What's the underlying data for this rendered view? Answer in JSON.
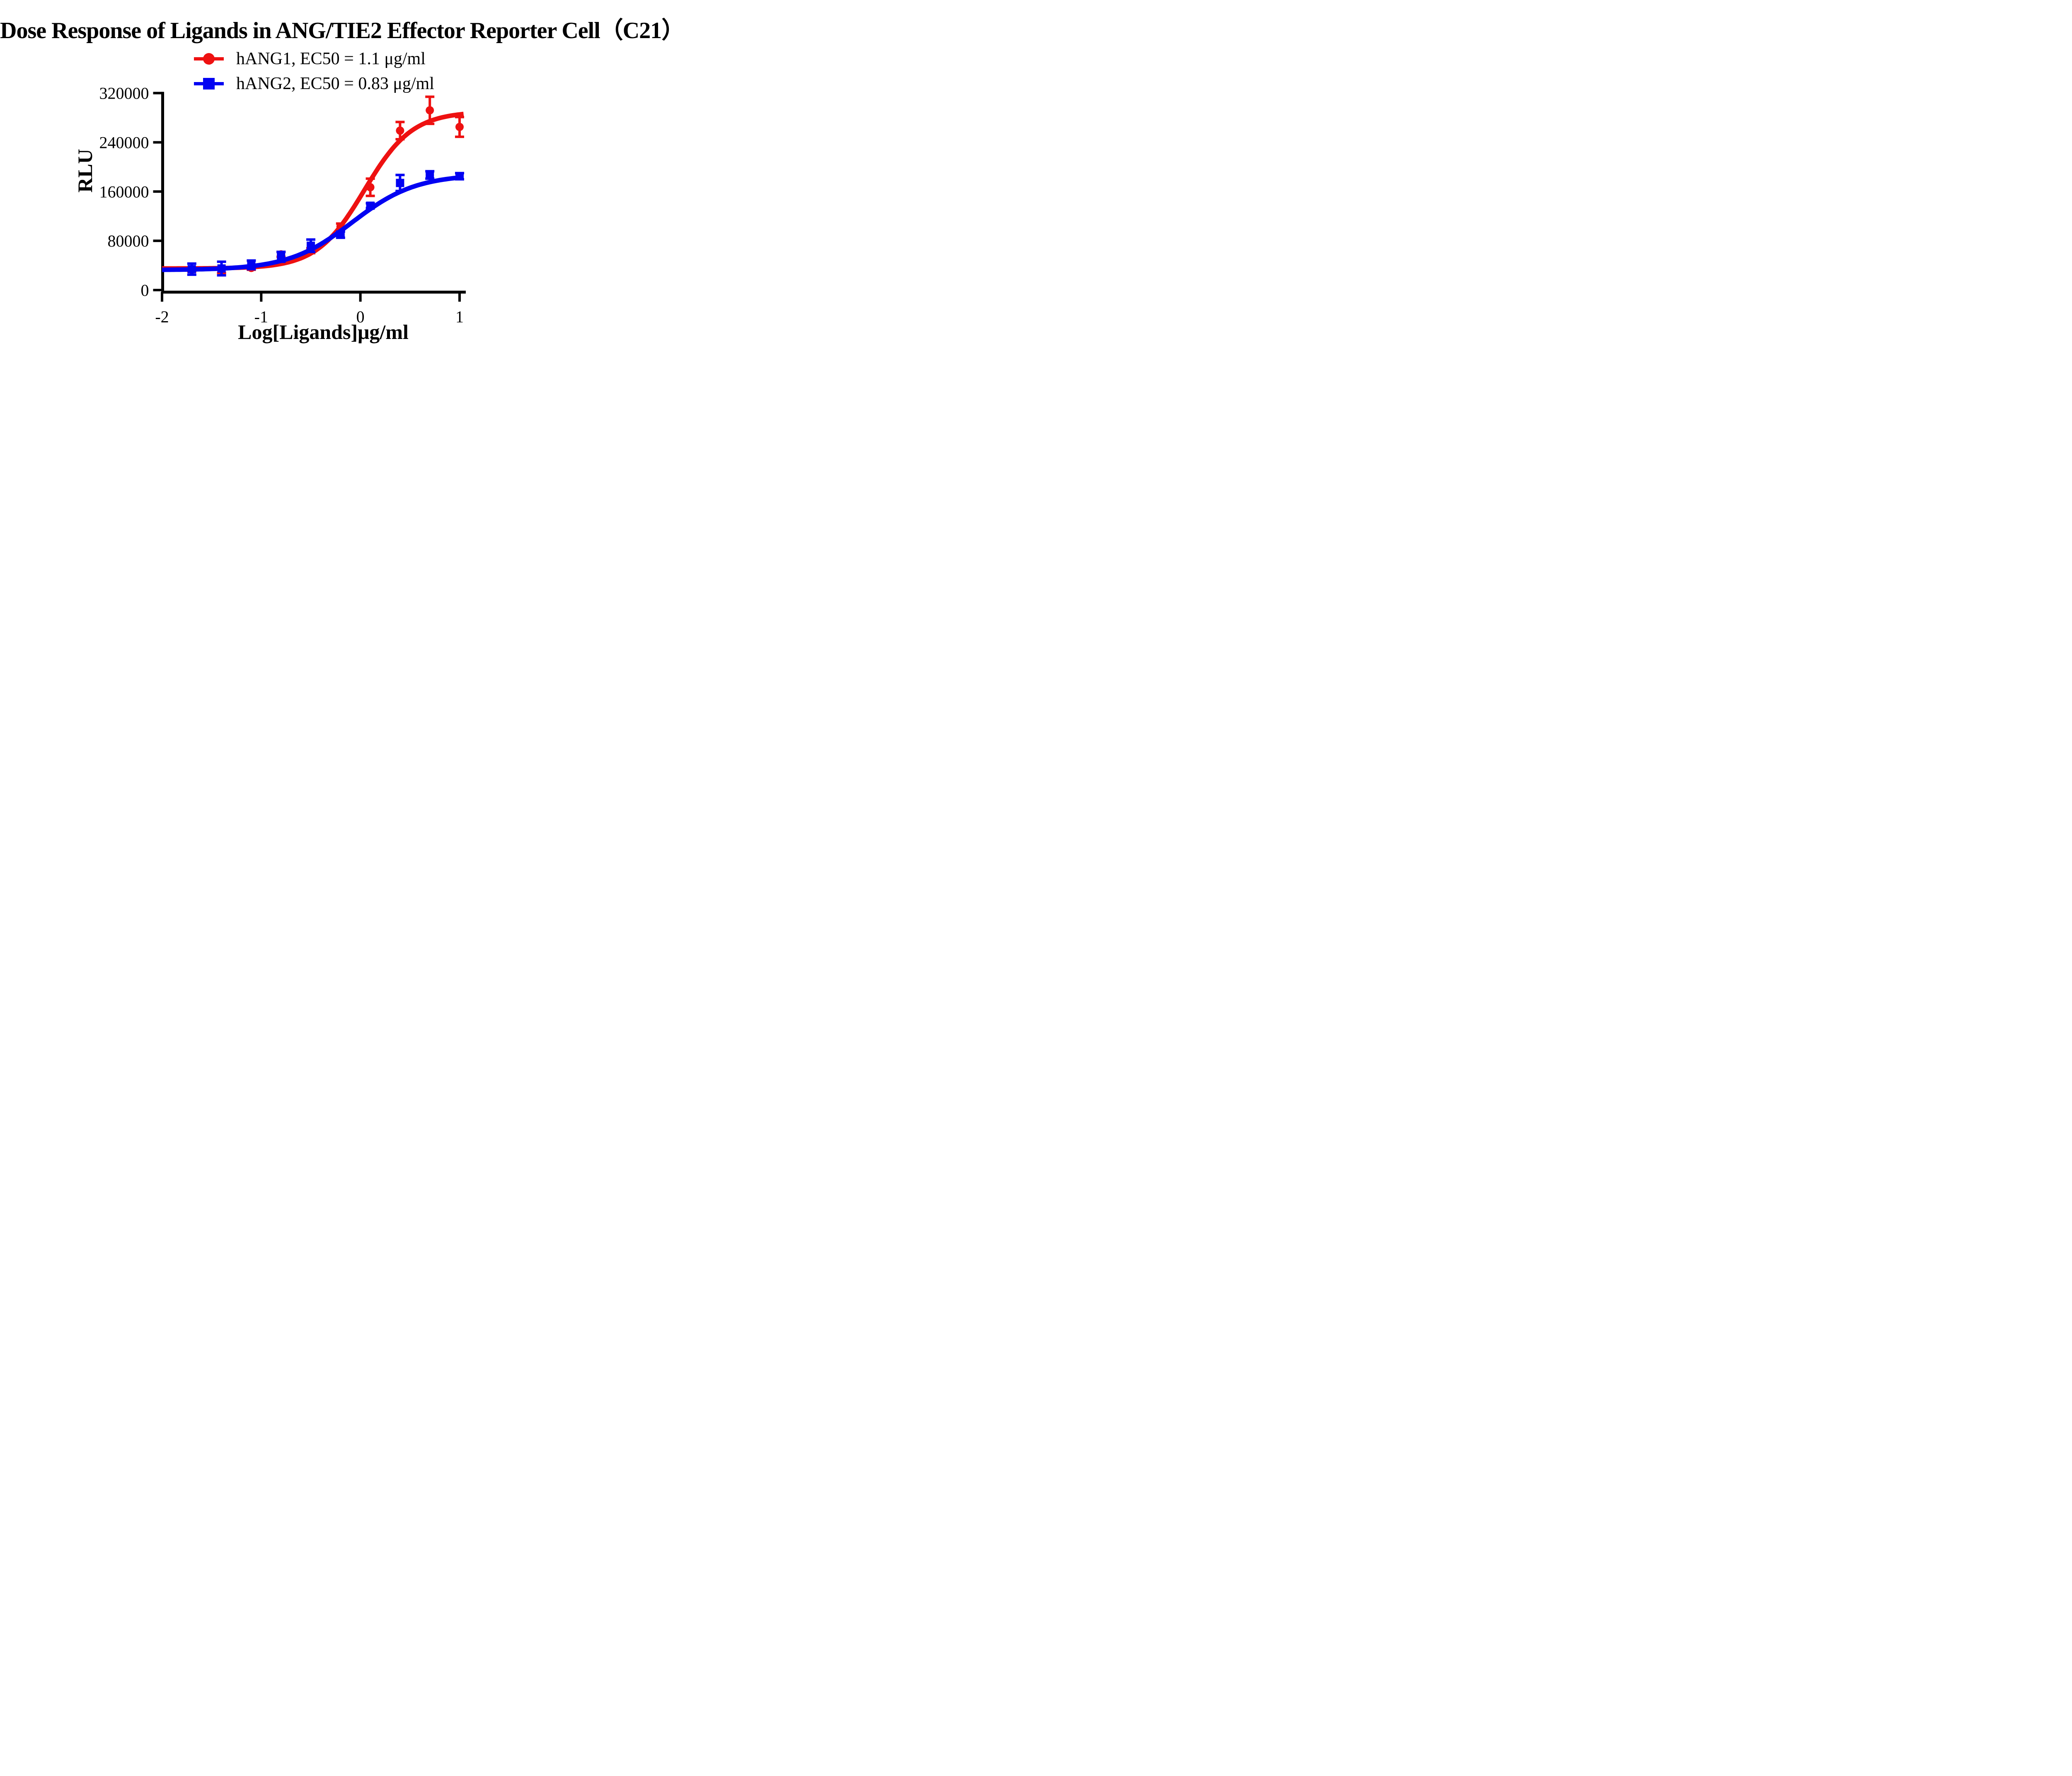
{
  "title": "Dose Response of Ligands in ANG/TIE2 Effector Reporter Cell（C21）",
  "colors": {
    "hang1": "#ee1111",
    "hang2": "#0202f2",
    "axis": "#000000",
    "background": "#ffffff"
  },
  "legend": [
    {
      "label": "hANG1, EC50 = 1.1 μg/ml",
      "marker": "circle",
      "color": "#ee1111"
    },
    {
      "label": "hANG2, EC50 = 0.83 μg/ml",
      "marker": "square",
      "color": "#0202f2"
    }
  ],
  "chart_data": {
    "type": "scatter",
    "title": "Dose Response of Ligands in ANG/TIE2 Effector Reporter Cell（C21）",
    "xlabel": "Log[Ligands]μg/ml",
    "ylabel": "RLU",
    "xlim": [
      -2,
      1.06
    ],
    "ylim": [
      0,
      320000
    ],
    "grid": false,
    "legend_position": "top-center",
    "x_ticks": [
      -2,
      -1,
      0,
      1
    ],
    "x_tick_labels": [
      "-2",
      "-1",
      "0",
      "1"
    ],
    "y_ticks": [
      0,
      80000,
      160000,
      240000,
      320000
    ],
    "y_tick_labels": [
      "0",
      "80000",
      "160000",
      "240000",
      "320000"
    ],
    "x": [
      -1.7,
      -1.4,
      -1.1,
      -0.8,
      -0.5,
      -0.2,
      0.1,
      0.4,
      0.7,
      1.0
    ],
    "series": [
      {
        "name": "hANG1",
        "ec50": "1.1 μg/ml",
        "marker": "circle",
        "color": "#ee1111",
        "values": [
          33000,
          31000,
          36000,
          58000,
          64000,
          103000,
          167000,
          259000,
          292000,
          265000
        ],
        "errors": [
          3000,
          3000,
          3000,
          4000,
          4000,
          5000,
          14000,
          14000,
          22000,
          16000
        ],
        "fit": {
          "model": "4PL",
          "bottom": 35000,
          "top": 290000,
          "logEC50": 0.041,
          "hill": 1.8
        }
      },
      {
        "name": "hANG2",
        "ec50": "0.83 μg/ml",
        "marker": "square",
        "color": "#0202f2",
        "values": [
          34000,
          35000,
          41000,
          54000,
          72000,
          90000,
          137000,
          174000,
          187000,
          185000
        ],
        "errors": [
          9000,
          11000,
          7000,
          8000,
          10000,
          5000,
          4000,
          13000,
          6000,
          5000
        ],
        "fit": {
          "model": "4PL",
          "bottom": 32500,
          "top": 188000,
          "logEC50": -0.081,
          "hill": 1.35
        }
      }
    ]
  }
}
